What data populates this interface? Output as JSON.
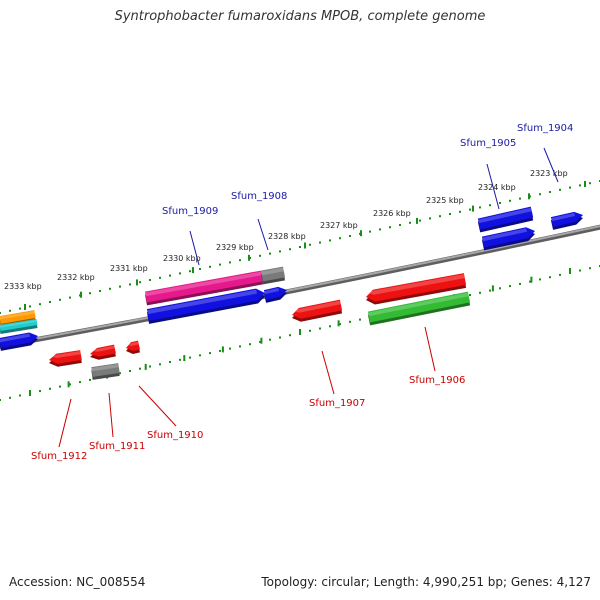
{
  "header": {
    "title": "Syntrophobacter fumaroxidans MPOB, complete genome"
  },
  "footer": {
    "accession": "Accession: NC_008554",
    "summary": "Topology: circular; Length: 4,990,251 bp; Genes: 4,127"
  },
  "tick_labels": [
    "2333 kbp",
    "2332 kbp",
    "2331 kbp",
    "2330 kbp",
    "2329 kbp",
    "2328 kbp",
    "2327 kbp",
    "2326 kbp",
    "2325 kbp",
    "2324 kbp",
    "2323 kbp"
  ],
  "gene_labels": {
    "forward": [
      "Sfum_1909",
      "Sfum_1908",
      "Sfum_1905",
      "Sfum_1904"
    ],
    "reverse": [
      "Sfum_1912",
      "Sfum_1911",
      "Sfum_1910",
      "Sfum_1907",
      "Sfum_1906"
    ]
  },
  "colors": {
    "backbone": "#808080",
    "tick_mark": "#1a8c1a",
    "forward_label": "#1a1aa6",
    "reverse_label": "#cc0000",
    "gene_blue": "#1010e0",
    "gene_red": "#ee1111",
    "gene_pink": "#e6198c",
    "gene_gray": "#7a7a7a",
    "gene_green": "#33bb33",
    "gene_orange": "#ff9900",
    "gene_cyan": "#22cccc"
  }
}
